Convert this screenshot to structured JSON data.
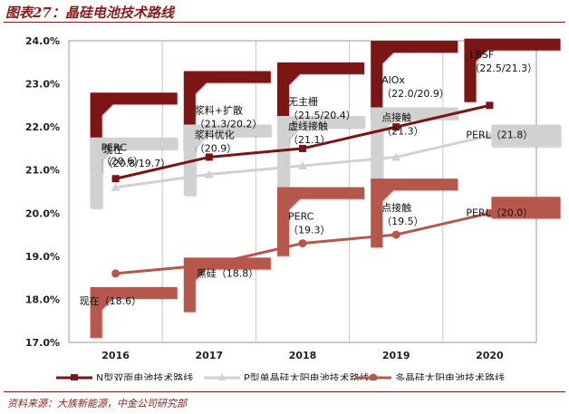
{
  "page": {
    "figure_title": "图表27：晶硅电池技术路线",
    "source_note": "资料来源：大族新能源，中金公司研究部"
  },
  "colors": {
    "n_type": "#7b1416",
    "p_mono": "#d1d1d1",
    "multi": "#b5584b",
    "title": "#8b1a1a"
  },
  "chart_data": {
    "type": "line",
    "title": "",
    "xlabel": "",
    "ylabel": "",
    "x": [
      "2016",
      "2017",
      "2018",
      "2019",
      "2020"
    ],
    "ylim": [
      17.0,
      24.0
    ],
    "yticks": [
      "17.0%",
      "18.0%",
      "19.0%",
      "20.0%",
      "21.0%",
      "22.0%",
      "23.0%",
      "24.0%"
    ],
    "grid": "vertical",
    "legend": "bottom",
    "series": [
      {
        "name": "N型双面电池技术路线",
        "color": "#7b1416",
        "marker": "square",
        "values": [
          20.8,
          21.3,
          21.5,
          22.0,
          22.5
        ],
        "labels": [
          [
            "现在",
            "（20.8/19.7）"
          ],
          [
            "浆料+扩散",
            "（21.3/20.2）"
          ],
          [
            "无主栅",
            "（21.5/20.4）"
          ],
          [
            "AlOx",
            "（22.0/20.9）"
          ],
          [
            "LBSF",
            "（22.5/21.3）"
          ]
        ]
      },
      {
        "name": "P型单晶硅太阳电池技术路线",
        "color": "#d1d1d1",
        "marker": "triangle",
        "values": [
          20.6,
          20.9,
          21.1,
          21.3,
          21.8
        ],
        "labels": [
          [
            "PERC",
            "（20.6）"
          ],
          [
            "浆料优化",
            "（20.9）"
          ],
          [
            "虚线接触",
            "（21.1）"
          ],
          [
            "点接触",
            "（21.3）"
          ],
          [
            "PERL（21.8）"
          ]
        ]
      },
      {
        "name": "多晶硅太阳电池技术路线",
        "color": "#b5584b",
        "marker": "circle",
        "values": [
          18.6,
          18.8,
          19.3,
          19.5,
          20.0
        ],
        "labels": [
          [
            "现在（18.6）"
          ],
          [
            "黑硅（18.8）"
          ],
          [
            "PERC",
            "（19.3）"
          ],
          [
            "点接触",
            "（19.5）"
          ],
          [
            "PERL（20.0）"
          ]
        ]
      }
    ]
  }
}
